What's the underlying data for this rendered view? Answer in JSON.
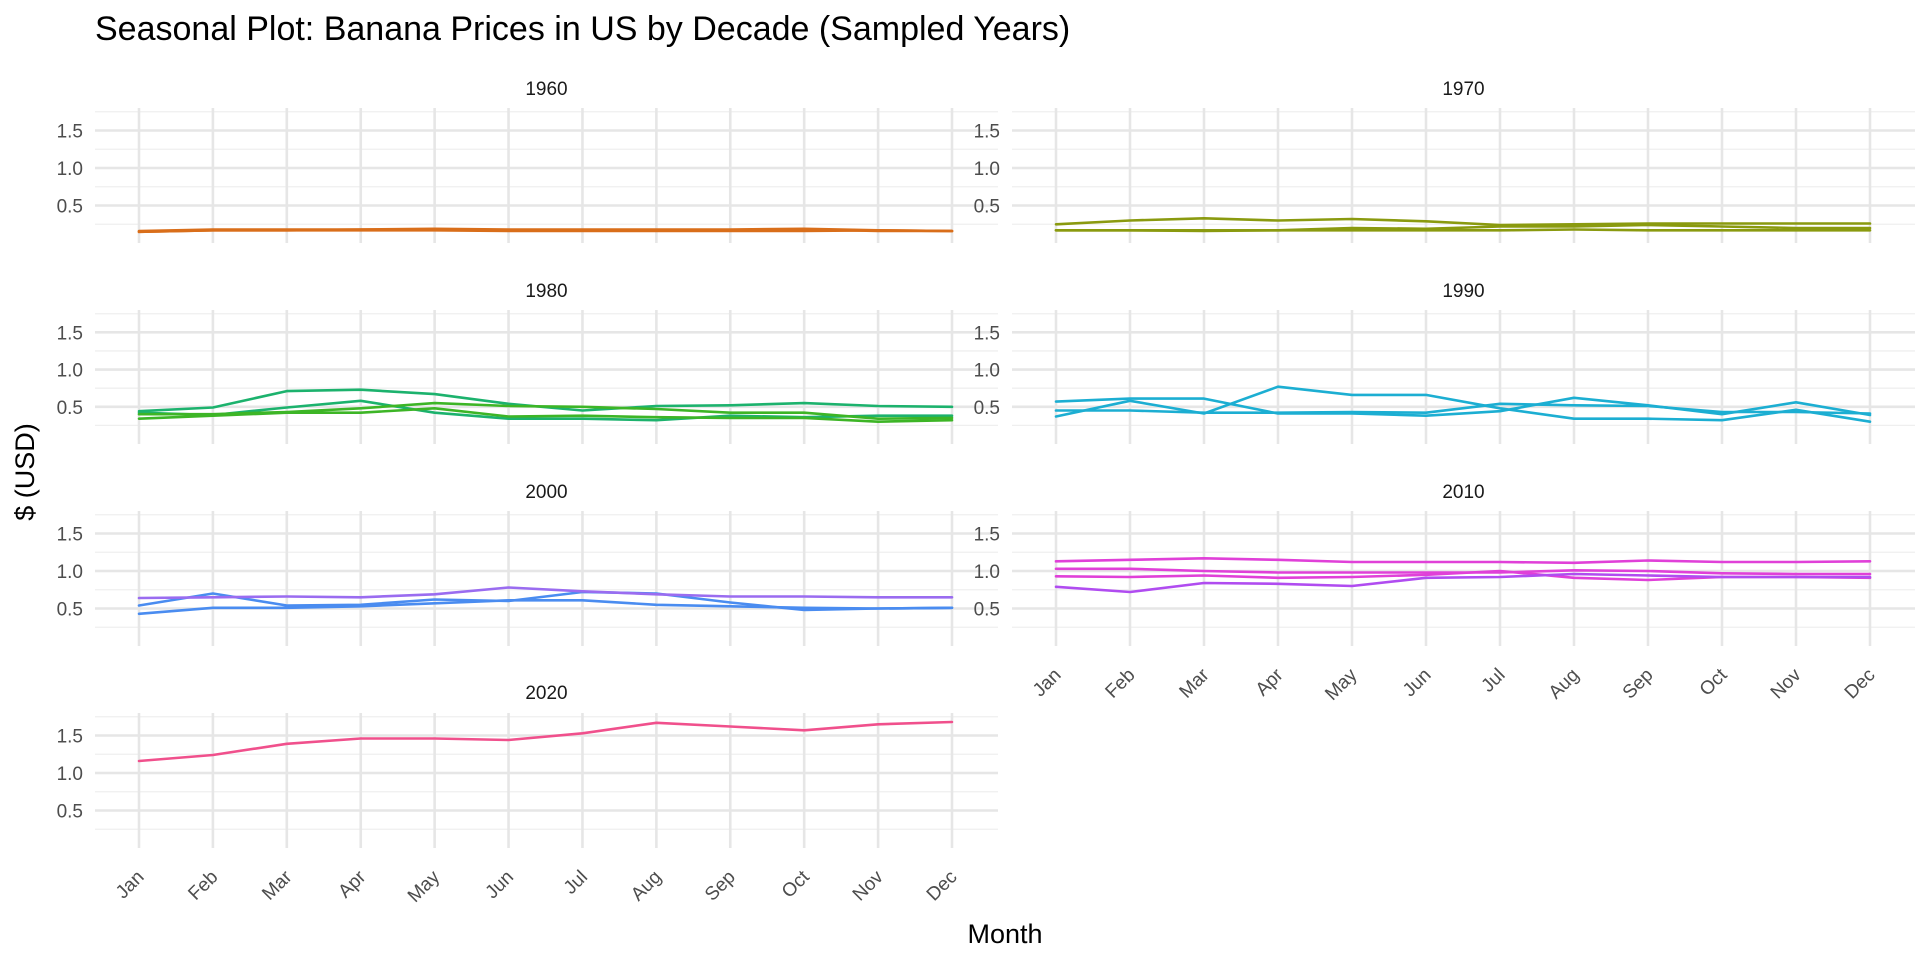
{
  "chart_data": {
    "type": "line",
    "title": "Seasonal Plot: Banana Prices in US by Decade (Sampled Years)",
    "xlabel": "Month",
    "ylabel": "$ (USD)",
    "categories": [
      "Jan",
      "Feb",
      "Mar",
      "Apr",
      "May",
      "Jun",
      "Jul",
      "Aug",
      "Sep",
      "Oct",
      "Nov",
      "Dec"
    ],
    "y_ticks": [
      0.5,
      1.0,
      1.5
    ],
    "y_tick_labels": [
      "0.5",
      "1.0",
      "1.5"
    ],
    "ylim": [
      0.0,
      1.8
    ],
    "grid": true,
    "legend": "none",
    "facets": [
      {
        "label": "1960",
        "color": "#D96E1A",
        "series": [
          {
            "values": [
              0.15,
              0.17,
              0.17,
              0.17,
              0.17,
              0.16,
              0.16,
              0.16,
              0.16,
              0.16,
              0.17,
              0.16
            ]
          },
          {
            "values": [
              0.16,
              0.18,
              0.18,
              0.18,
              0.19,
              0.18,
              0.18,
              0.18,
              0.18,
              0.19,
              0.17,
              0.16
            ]
          },
          {
            "values": [
              0.15,
              0.17,
              0.17,
              0.18,
              0.18,
              0.17,
              0.17,
              0.17,
              0.17,
              0.18,
              0.16,
              0.16
            ]
          }
        ]
      },
      {
        "label": "1970",
        "color": "#8A9A0F",
        "series": [
          {
            "values": [
              0.25,
              0.3,
              0.33,
              0.3,
              0.32,
              0.29,
              0.24,
              0.25,
              0.26,
              0.26,
              0.26,
              0.26
            ]
          },
          {
            "values": [
              0.17,
              0.17,
              0.17,
              0.17,
              0.2,
              0.19,
              0.22,
              0.22,
              0.24,
              0.22,
              0.2,
              0.2
            ]
          },
          {
            "values": [
              0.17,
              0.17,
              0.16,
              0.17,
              0.17,
              0.17,
              0.17,
              0.18,
              0.17,
              0.17,
              0.17,
              0.17
            ]
          }
        ]
      },
      {
        "label": "1980",
        "color": "#1CB26D",
        "series": [
          {
            "values": [
              0.44,
              0.49,
              0.71,
              0.73,
              0.67,
              0.54,
              0.45,
              0.51,
              0.52,
              0.55,
              0.51,
              0.5
            ]
          },
          {
            "values": [
              0.42,
              0.39,
              0.49,
              0.58,
              0.42,
              0.34,
              0.34,
              0.32,
              0.38,
              0.36,
              0.38,
              0.38
            ]
          }
        ]
      },
      {
        "label": "1980",
        "color": "#3DB526",
        "series": [
          {
            "values": [
              0.34,
              0.38,
              0.42,
              0.42,
              0.48,
              0.37,
              0.38,
              0.36,
              0.35,
              0.35,
              0.3,
              0.32
            ]
          },
          {
            "values": [
              0.4,
              0.4,
              0.43,
              0.48,
              0.55,
              0.51,
              0.5,
              0.47,
              0.42,
              0.42,
              0.34,
              0.35
            ]
          }
        ]
      },
      {
        "label": "1990",
        "color": "#1CAED2",
        "series": [
          {
            "values": [
              0.57,
              0.61,
              0.61,
              0.41,
              0.41,
              0.38,
              0.44,
              0.62,
              0.52,
              0.4,
              0.56,
              0.39
            ]
          },
          {
            "values": [
              0.37,
              0.58,
              0.41,
              0.77,
              0.66,
              0.66,
              0.48,
              0.34,
              0.34,
              0.32,
              0.46,
              0.3
            ]
          },
          {
            "values": [
              0.45,
              0.45,
              0.42,
              0.42,
              0.43,
              0.42,
              0.54,
              0.52,
              0.51,
              0.43,
              0.43,
              0.41
            ]
          }
        ]
      },
      {
        "label": "2000",
        "color": "#4A8CF0",
        "series": [
          {
            "values": [
              0.43,
              0.51,
              0.51,
              0.53,
              0.57,
              0.61,
              0.61,
              0.55,
              0.53,
              0.51,
              0.5,
              0.51
            ]
          },
          {
            "values": [
              0.54,
              0.7,
              0.54,
              0.55,
              0.62,
              0.6,
              0.72,
              0.7,
              0.58,
              0.48,
              0.5,
              0.51
            ]
          }
        ]
      },
      {
        "label": "2000",
        "color": "#9A6CF0",
        "series": [
          {
            "values": [
              0.64,
              0.65,
              0.66,
              0.65,
              0.69,
              0.78,
              0.73,
              0.69,
              0.66,
              0.66,
              0.65,
              0.65
            ]
          }
        ]
      },
      {
        "label": "2010",
        "color": "#E040D8",
        "series": [
          {
            "values": [
              1.13,
              1.15,
              1.17,
              1.15,
              1.12,
              1.12,
              1.12,
              1.11,
              1.14,
              1.12,
              1.12,
              1.13
            ]
          },
          {
            "values": [
              1.03,
              1.03,
              1.0,
              0.98,
              0.98,
              0.98,
              0.98,
              1.01,
              1.0,
              0.97,
              0.96,
              0.96
            ]
          },
          {
            "values": [
              0.93,
              0.92,
              0.94,
              0.91,
              0.92,
              0.95,
              1.0,
              0.91,
              0.88,
              0.92,
              0.92,
              0.91
            ]
          }
        ]
      },
      {
        "label": "2010",
        "color": "#B04CF0",
        "series": [
          {
            "values": [
              0.79,
              0.72,
              0.84,
              0.83,
              0.8,
              0.91,
              0.92,
              0.96,
              0.94,
              0.92,
              0.92,
              0.92
            ]
          }
        ]
      },
      {
        "label": "2020",
        "color": "#F0508C",
        "series": [
          {
            "values": [
              1.16,
              1.24,
              1.39,
              1.46,
              1.46,
              1.44,
              1.53,
              1.67,
              1.62,
              1.57,
              1.65,
              1.68
            ]
          }
        ]
      }
    ]
  }
}
